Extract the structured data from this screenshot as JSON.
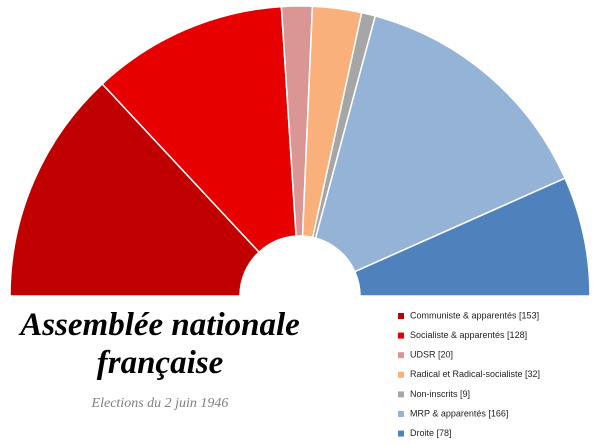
{
  "chart_data": {
    "type": "parliament",
    "title": "Assemblée nationale française",
    "subtitle": "Elections du 2 juin 1946",
    "categories": [
      "Communiste & apparentés [153]",
      "Socialiste & apparentés [128]",
      "UDSR [20]",
      "Radical et Radical-socialiste [32]",
      "Non-inscrits [9]",
      "MRP & apparentés [166]",
      "Droite [78]"
    ],
    "values": [
      153,
      128,
      20,
      32,
      9,
      166,
      78
    ],
    "colors": [
      "#c00000",
      "#e60000",
      "#d99694",
      "#fab07a",
      "#a6a6a6",
      "#95b3d7",
      "#4f81bd"
    ]
  }
}
